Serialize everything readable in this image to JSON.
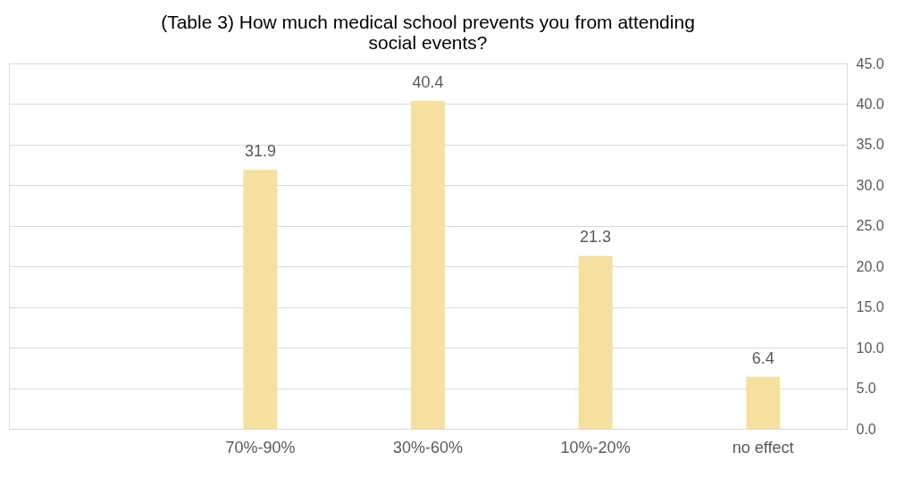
{
  "chart_data": {
    "type": "bar",
    "title": "(Table 3) How much medical school prevents you from attending social events?",
    "categories": [
      null,
      "70%-90%",
      "30%-60%",
      "10%-20%",
      "no effect"
    ],
    "values": [
      null,
      31.9,
      40.4,
      21.3,
      6.4
    ],
    "color": "#f5e09f",
    "ylim": [
      0,
      45
    ],
    "yticks": [
      {
        "value": 0,
        "label": "0.0"
      },
      {
        "value": 5,
        "label": "5.0"
      },
      {
        "value": 10,
        "label": "10.0"
      },
      {
        "value": 15,
        "label": "15.0"
      },
      {
        "value": 20,
        "label": "20.0"
      },
      {
        "value": 25,
        "label": "25.0"
      },
      {
        "value": 30,
        "label": "30.0"
      },
      {
        "value": 35,
        "label": "35.0"
      },
      {
        "value": 40,
        "label": "40.0"
      },
      {
        "value": 45,
        "label": "45.0"
      }
    ],
    "grid": "y",
    "data_labels": true
  }
}
